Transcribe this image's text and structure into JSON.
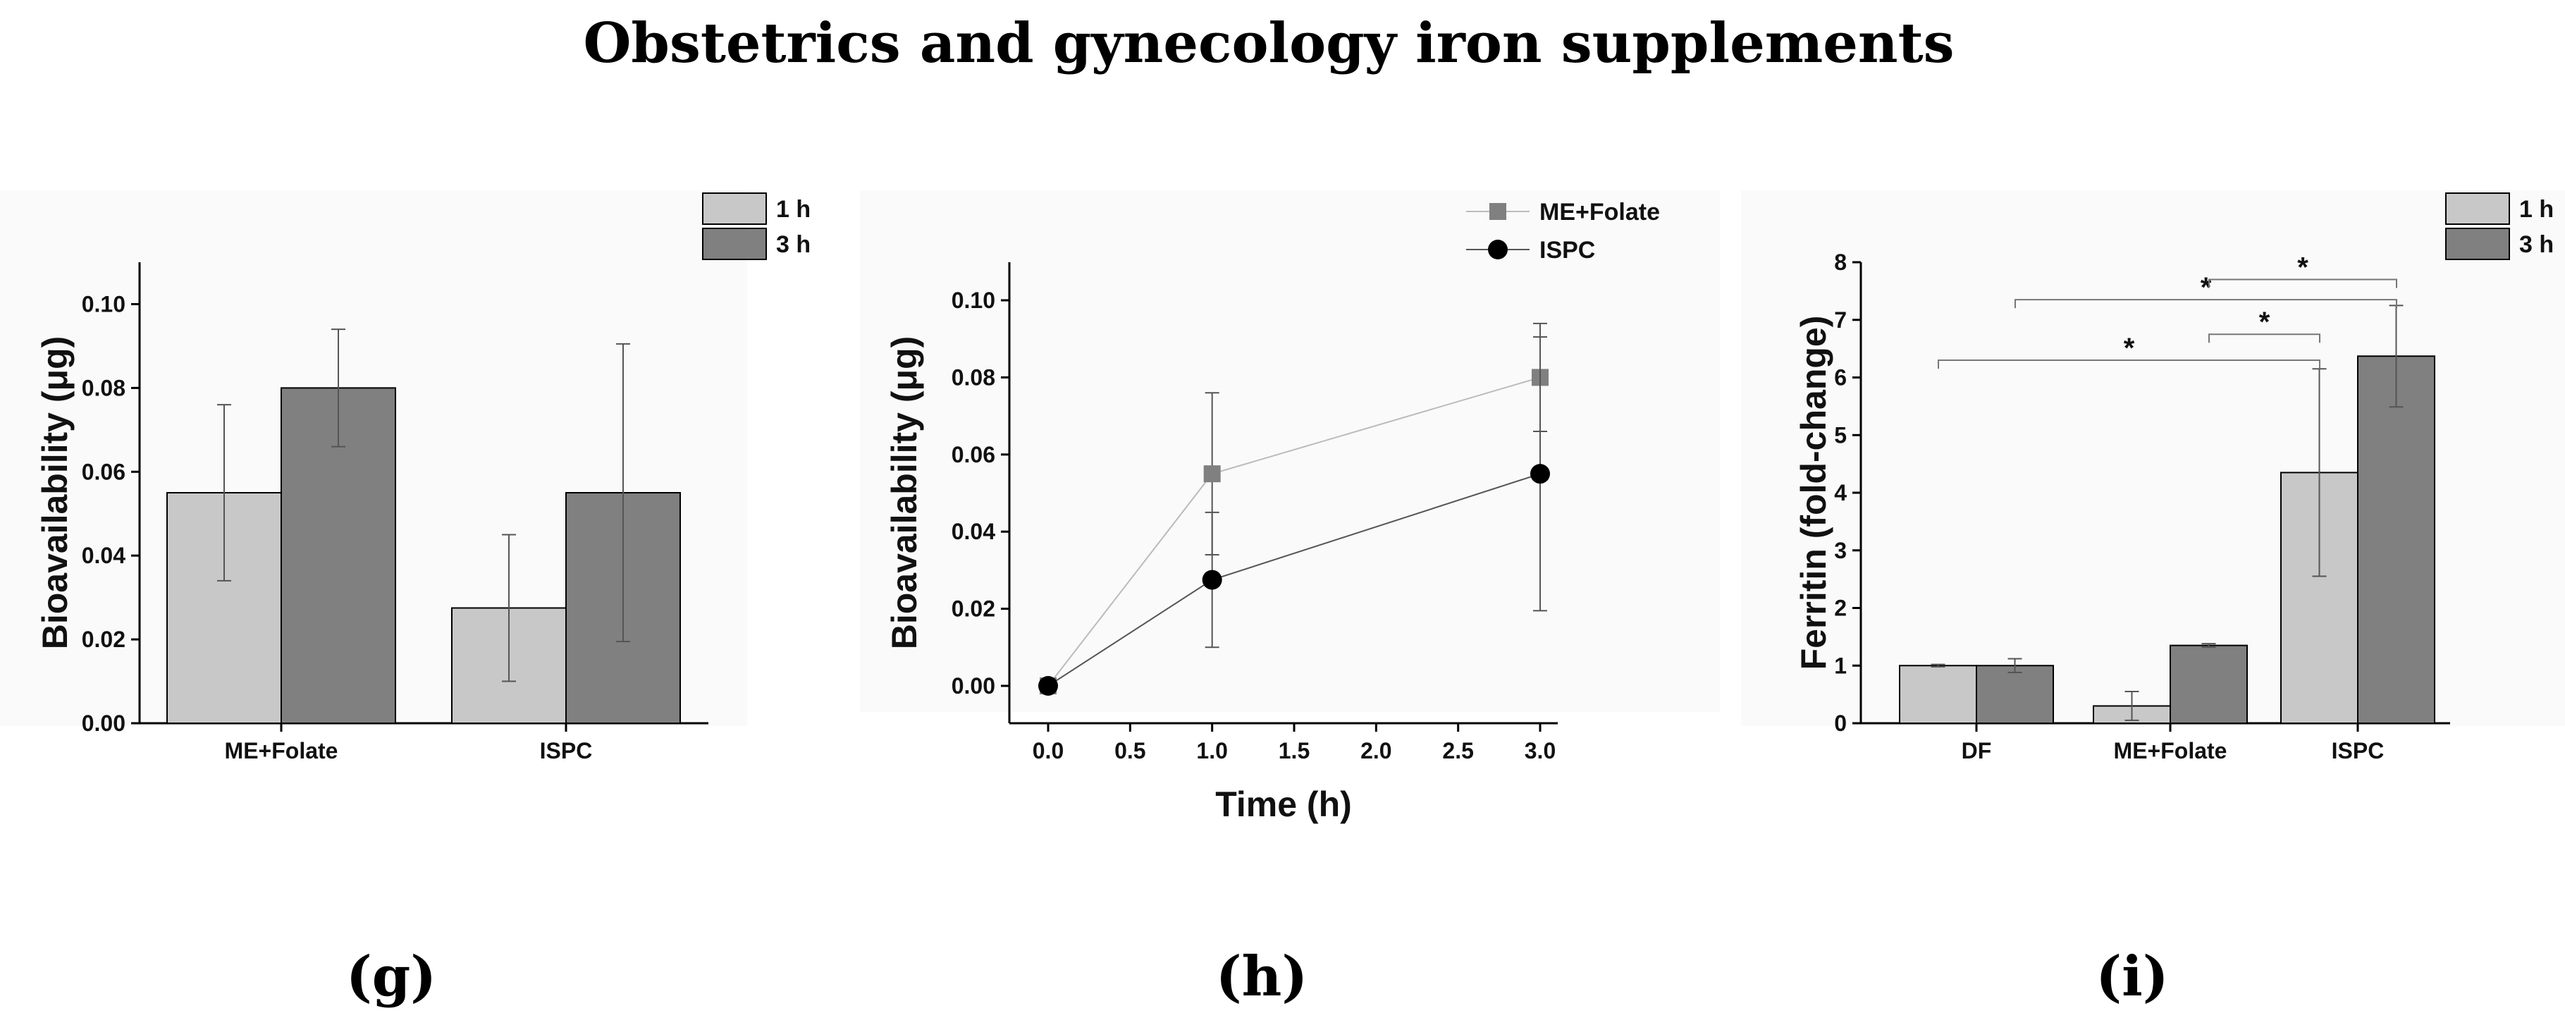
{
  "figure": {
    "title": "Obstetrics and gynecology iron supplements",
    "colors": {
      "h1": "#c8c8c8",
      "h3": "#808080",
      "line_me": "#808080",
      "line_ispc": "#000000",
      "panel_bg": "#fafafa"
    }
  },
  "chart_data": [
    {
      "panel_label": "(g)",
      "type": "bar",
      "categories": [
        "ME+Folate",
        "ISPC"
      ],
      "series": [
        {
          "name": "1 h",
          "values": [
            0.055,
            0.0275
          ],
          "errors": [
            0.021,
            0.0175
          ]
        },
        {
          "name": "3 h",
          "values": [
            0.08,
            0.055
          ],
          "errors": [
            0.014,
            0.0355
          ]
        }
      ],
      "ylabel": "Bioavailability (μg)",
      "xlabel": "",
      "ylim": [
        0,
        0.11
      ],
      "yticks": [
        "0.00",
        "0.02",
        "0.04",
        "0.06",
        "0.08",
        "0.10"
      ],
      "ytick_values": [
        0,
        0.02,
        0.04,
        0.06,
        0.08,
        0.1
      ],
      "legend": [
        "1 h",
        "3 h"
      ],
      "legend_position": "top-right"
    },
    {
      "panel_label": "(h)",
      "type": "line",
      "series": [
        {
          "name": "ME+Folate",
          "x": [
            0,
            1,
            3
          ],
          "y": [
            0,
            0.055,
            0.08
          ],
          "errors": [
            0,
            0.021,
            0.014
          ],
          "marker": "square"
        },
        {
          "name": "ISPC",
          "x": [
            0,
            1,
            3
          ],
          "y": [
            0,
            0.0275,
            0.055
          ],
          "errors": [
            0,
            0.0175,
            0.0355
          ],
          "marker": "circle"
        }
      ],
      "xlabel": "Time (h)",
      "ylabel": "Bioavailability (μg)",
      "xlim": [
        -0.2,
        3.2
      ],
      "ylim": [
        -0.01,
        0.11
      ],
      "xticks": [
        "0.0",
        "0.5",
        "1.0",
        "1.5",
        "2.0",
        "2.5",
        "3.0"
      ],
      "xtick_values": [
        0,
        0.5,
        1,
        1.5,
        2,
        2.5,
        3
      ],
      "yticks": [
        "0.00",
        "0.02",
        "0.04",
        "0.06",
        "0.08",
        "0.10"
      ],
      "ytick_values": [
        0,
        0.02,
        0.04,
        0.06,
        0.08,
        0.1
      ],
      "legend": [
        "ME+Folate",
        "ISPC"
      ],
      "legend_position": "top-right"
    },
    {
      "panel_label": "(i)",
      "type": "bar",
      "categories": [
        "DF",
        "ME+Folate",
        "ISPC"
      ],
      "series": [
        {
          "name": "1 h",
          "values": [
            1.0,
            0.3,
            4.35
          ],
          "errors": [
            0.02,
            0.25,
            1.8
          ]
        },
        {
          "name": "3 h",
          "values": [
            1.0,
            1.35,
            6.37
          ],
          "errors": [
            0.12,
            0.03,
            0.88
          ]
        }
      ],
      "ylabel": "Ferritin (fold-change)",
      "xlabel": "",
      "ylim": [
        0,
        8
      ],
      "yticks": [
        "0",
        "1",
        "2",
        "3",
        "4",
        "5",
        "6",
        "7",
        "8"
      ],
      "ytick_values": [
        0,
        1,
        2,
        3,
        4,
        5,
        6,
        7,
        8
      ],
      "legend": [
        "1 h",
        "3 h"
      ],
      "legend_position": "top-right",
      "significance": [
        {
          "from": "DF 1 h",
          "to": "ISPC 1 h",
          "level": 6.3,
          "label": "*"
        },
        {
          "from": "ME+Folate 3 h",
          "to": "ISPC 1 h",
          "level": 6.75,
          "label": "*"
        },
        {
          "from": "DF 3 h",
          "to": "ISPC 3 h",
          "level": 7.35,
          "label": "*"
        },
        {
          "from": "ME+Folate 3 h",
          "to": "ISPC 3 h",
          "level": 7.7,
          "label": "*"
        }
      ]
    }
  ]
}
